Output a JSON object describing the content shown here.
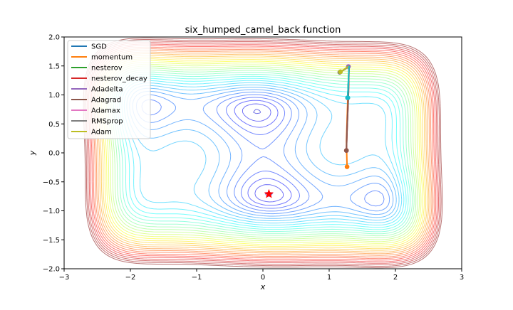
{
  "chart_data": {
    "type": "line",
    "title": "six_humped_camel_back function",
    "xlabel": "x",
    "ylabel": "y",
    "xlim": [
      -3,
      3
    ],
    "ylim": [
      -2,
      2
    ],
    "xticks": [
      "−3",
      "−2",
      "−1",
      "0",
      "1",
      "2",
      "3"
    ],
    "yticks": [
      "−2.0",
      "−1.5",
      "−1.0",
      "−0.5",
      "0.0",
      "0.5",
      "1.0",
      "1.5",
      "2.0"
    ],
    "xtick_values": [
      -3,
      -2,
      -1,
      0,
      1,
      2,
      3
    ],
    "ytick_values": [
      -2.0,
      -1.5,
      -1.0,
      -0.5,
      0.0,
      0.5,
      1.0,
      1.5,
      2.0
    ],
    "grid": false,
    "legend_position": "top-left",
    "background": "contour plot of the six-humped camel back function (jet colormap)",
    "minimum_marker": {
      "x": 0.09,
      "y": -0.71,
      "color": "#ff0000",
      "shape": "star"
    },
    "series": [
      {
        "name": "SGD",
        "color": "#1f77b4",
        "x": [
          1.3,
          1.28
        ],
        "y": [
          1.5,
          0.95
        ]
      },
      {
        "name": "momentum",
        "color": "#ff7f0e",
        "x": [
          1.3,
          1.28,
          1.26,
          1.27
        ],
        "y": [
          1.5,
          0.9,
          0.2,
          -0.24
        ]
      },
      {
        "name": "nesterov",
        "color": "#2ca02c",
        "x": [
          1.3,
          1.28
        ],
        "y": [
          1.5,
          0.95
        ]
      },
      {
        "name": "nesterov_decay",
        "color": "#d62728",
        "x": [
          1.3,
          1.29,
          1.27,
          1.26
        ],
        "y": [
          1.5,
          1.0,
          0.4,
          0.04
        ]
      },
      {
        "name": "Adadelta",
        "color": "#9467bd",
        "x": [
          1.3,
          1.29
        ],
        "y": [
          1.5,
          1.49
        ]
      },
      {
        "name": "Adagrad",
        "color": "#8c564b",
        "x": [
          1.3,
          1.29,
          1.27,
          1.26
        ],
        "y": [
          1.5,
          1.0,
          0.4,
          0.04
        ]
      },
      {
        "name": "Adamax",
        "color": "#e377c2",
        "x": [
          1.3,
          1.26,
          1.2,
          1.17
        ],
        "y": [
          1.5,
          1.46,
          1.42,
          1.4
        ]
      },
      {
        "name": "RMSprop",
        "color": "#7f7f7f",
        "x": [
          1.3,
          1.25,
          1.19,
          1.16
        ],
        "y": [
          1.5,
          1.45,
          1.41,
          1.39
        ]
      },
      {
        "name": "Adam",
        "color": "#bcbd22",
        "x": [
          1.3,
          1.25,
          1.2,
          1.17
        ],
        "y": [
          1.5,
          1.46,
          1.42,
          1.4
        ]
      },
      {
        "name": "",
        "color": "#17becf",
        "x": [
          1.3,
          1.29,
          1.28
        ],
        "y": [
          1.5,
          1.2,
          0.95
        ]
      }
    ]
  }
}
